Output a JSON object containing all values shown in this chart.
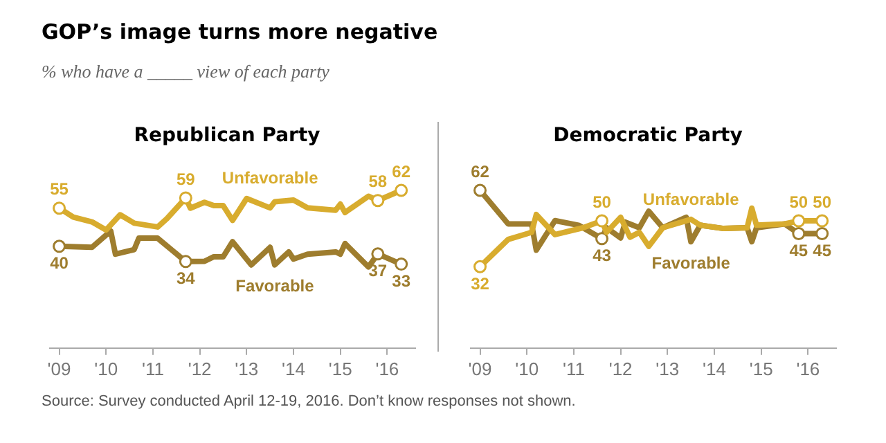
{
  "chart_data": [
    {
      "type": "other",
      "title": "GOP’s image turns more negative",
      "subtitle": "% who have a _____ view of each party",
      "annotations": [
        "Source: Survey conducted April 12-19, 2016. Don’t know responses not shown."
      ]
    },
    {
      "type": "line",
      "title": "Republican Party",
      "xlim": [
        2008.8,
        2016.6
      ],
      "tick_labels": "x",
      "line_style": "solid",
      "grid": false,
      "legend": false,
      "xticks": [
        {
          "value": 2009,
          "label": "'09"
        },
        {
          "value": 2010,
          "label": "'10"
        },
        {
          "value": 2011,
          "label": "'11"
        },
        {
          "value": 2012,
          "label": "'12"
        },
        {
          "value": 2013,
          "label": "'13"
        },
        {
          "value": 2014,
          "label": "'14"
        },
        {
          "value": 2015,
          "label": "'15"
        },
        {
          "value": 2016,
          "label": "'16"
        }
      ],
      "series": [
        {
          "name": "Unfavorable",
          "color": "#d8ac2e",
          "x": [
            2009.0,
            2009.3,
            2009.7,
            2010.0,
            2010.3,
            2010.6,
            2011.1,
            2011.3,
            2011.7,
            2011.8,
            2012.1,
            2012.3,
            2012.5,
            2012.7,
            2013.0,
            2013.5,
            2013.6,
            2014.0,
            2014.3,
            2014.9,
            2015.0,
            2015.1,
            2015.6,
            2015.8,
            2016.3
          ],
          "values": [
            55,
            51.5,
            49.6,
            46.4,
            52.4,
            49.1,
            47.6,
            50.9,
            59,
            55,
            57.3,
            56,
            56,
            50.2,
            58.8,
            55.1,
            57.5,
            58.2,
            55.1,
            54.2,
            56.6,
            53.3,
            59.7,
            58,
            62
          ],
          "value_labels": [
            "55",
            null,
            null,
            null,
            null,
            null,
            null,
            null,
            "59",
            null,
            null,
            null,
            null,
            null,
            null,
            null,
            null,
            null,
            null,
            null,
            null,
            null,
            null,
            "58",
            "62"
          ]
        },
        {
          "name": "Favorable",
          "color": "#9e7d2e",
          "x": [
            2009.0,
            2009.7,
            2010.1,
            2010.2,
            2010.6,
            2010.7,
            2011.1,
            2011.7,
            2012.1,
            2012.3,
            2012.5,
            2012.7,
            2013.1,
            2013.5,
            2013.6,
            2013.9,
            2014.0,
            2014.3,
            2014.9,
            2015.0,
            2015.1,
            2015.6,
            2015.8,
            2016.3
          ],
          "values": [
            40,
            39.6,
            46,
            36.9,
            38.7,
            43.2,
            43.2,
            34,
            34.1,
            35.9,
            35.9,
            41.8,
            32.7,
            39.6,
            32.7,
            37.8,
            35,
            36.9,
            37.8,
            36.9,
            41.1,
            31.9,
            37,
            33
          ],
          "value_labels": [
            "40",
            null,
            null,
            null,
            null,
            null,
            null,
            "34",
            null,
            null,
            null,
            null,
            null,
            null,
            null,
            null,
            null,
            null,
            null,
            null,
            null,
            null,
            "37",
            "33"
          ]
        }
      ]
    },
    {
      "type": "line",
      "title": "Democratic Party",
      "xlim": [
        2008.8,
        2016.6
      ],
      "tick_labels": "x",
      "line_style": "solid",
      "grid": false,
      "legend": false,
      "xticks": [
        {
          "value": 2009,
          "label": "'09"
        },
        {
          "value": 2010,
          "label": "'10"
        },
        {
          "value": 2011,
          "label": "'11"
        },
        {
          "value": 2012,
          "label": "'12"
        },
        {
          "value": 2013,
          "label": "'13"
        },
        {
          "value": 2014,
          "label": "'14"
        },
        {
          "value": 2015,
          "label": "'15"
        },
        {
          "value": 2016,
          "label": "'16"
        }
      ],
      "series": [
        {
          "name": "Unfavorable",
          "color": "#d8ac2e",
          "x": [
            2009.0,
            2009.6,
            2010.1,
            2010.2,
            2010.6,
            2011.2,
            2011.6,
            2011.7,
            2012.0,
            2012.2,
            2012.4,
            2012.6,
            2012.9,
            2013.5,
            2013.7,
            2014.2,
            2014.7,
            2014.8,
            2014.9,
            2015.5,
            2015.8,
            2016.3
          ],
          "values": [
            32,
            42.7,
            45.5,
            52.5,
            44.6,
            47.3,
            50,
            45.5,
            51.4,
            43.6,
            45.5,
            40,
            47.3,
            50.6,
            48.3,
            47,
            47.3,
            55,
            48.3,
            48.8,
            50,
            50
          ],
          "value_labels": [
            "32",
            null,
            null,
            null,
            null,
            null,
            "50",
            null,
            null,
            null,
            null,
            null,
            null,
            null,
            null,
            null,
            null,
            null,
            null,
            null,
            "50",
            "50"
          ]
        },
        {
          "name": "Favorable",
          "color": "#9e7d2e",
          "x": [
            2009.0,
            2009.6,
            2010.1,
            2010.2,
            2010.6,
            2011.1,
            2011.6,
            2011.7,
            2012.0,
            2012.1,
            2012.4,
            2012.6,
            2012.9,
            2013.4,
            2013.5,
            2013.7,
            2014.2,
            2014.7,
            2014.8,
            2014.9,
            2015.5,
            2015.8,
            2016.3
          ],
          "values": [
            62,
            48.8,
            48.8,
            38.5,
            50.1,
            48.3,
            43,
            47.3,
            43.3,
            49.5,
            47.3,
            53.8,
            47.3,
            51.4,
            41.8,
            48.3,
            47,
            47.3,
            41.8,
            47.3,
            48.8,
            45,
            45
          ],
          "value_labels": [
            "62",
            null,
            null,
            null,
            null,
            null,
            "43",
            null,
            null,
            null,
            null,
            null,
            null,
            null,
            null,
            null,
            null,
            null,
            null,
            null,
            null,
            "45",
            "45"
          ]
        }
      ]
    }
  ]
}
